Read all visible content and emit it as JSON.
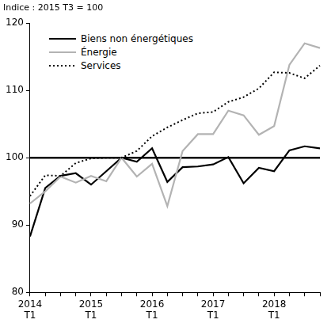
{
  "chart_data": {
    "type": "line",
    "y_label": "Indice : 2015 T3 = 100",
    "categories": [
      "2014 T1",
      null,
      null,
      null,
      "2015 T1",
      null,
      null,
      null,
      "2016 T1",
      null,
      null,
      null,
      "2017 T1",
      null,
      null,
      null,
      "2018 T1",
      null,
      null,
      null
    ],
    "series": [
      {
        "name": "Biens non énergétiques",
        "color": "#000000",
        "line_style": "solid",
        "values": [
          88.3,
          95.5,
          97.3,
          97.7,
          96.0,
          98.0,
          100.0,
          99.4,
          101.4,
          96.4,
          98.6,
          98.7,
          99.0,
          100.1,
          96.2,
          98.5,
          98.0,
          101.1,
          101.7,
          101.4
        ]
      },
      {
        "name": "Énergie",
        "color": "#b3b3b3",
        "line_style": "solid",
        "values": [
          93.2,
          95.0,
          97.2,
          96.3,
          97.3,
          96.5,
          100.0,
          97.2,
          99.1,
          92.8,
          101.0,
          103.5,
          103.5,
          107.0,
          106.3,
          103.4,
          104.7,
          113.8,
          117.0,
          116.3
        ]
      },
      {
        "name": "Services",
        "color": "#000000",
        "line_style": "dotted",
        "values": [
          94.3,
          97.4,
          97.3,
          99.2,
          99.9,
          100.0,
          100.0,
          101.0,
          103.2,
          104.5,
          105.6,
          106.6,
          106.8,
          108.3,
          109.0,
          110.3,
          112.7,
          112.6,
          111.8,
          113.7
        ]
      }
    ],
    "reference_line": 100,
    "ylim": [
      80,
      120
    ],
    "yticks": [
      80,
      90,
      100,
      110,
      120
    ],
    "grid": false,
    "legend": "top-left"
  }
}
